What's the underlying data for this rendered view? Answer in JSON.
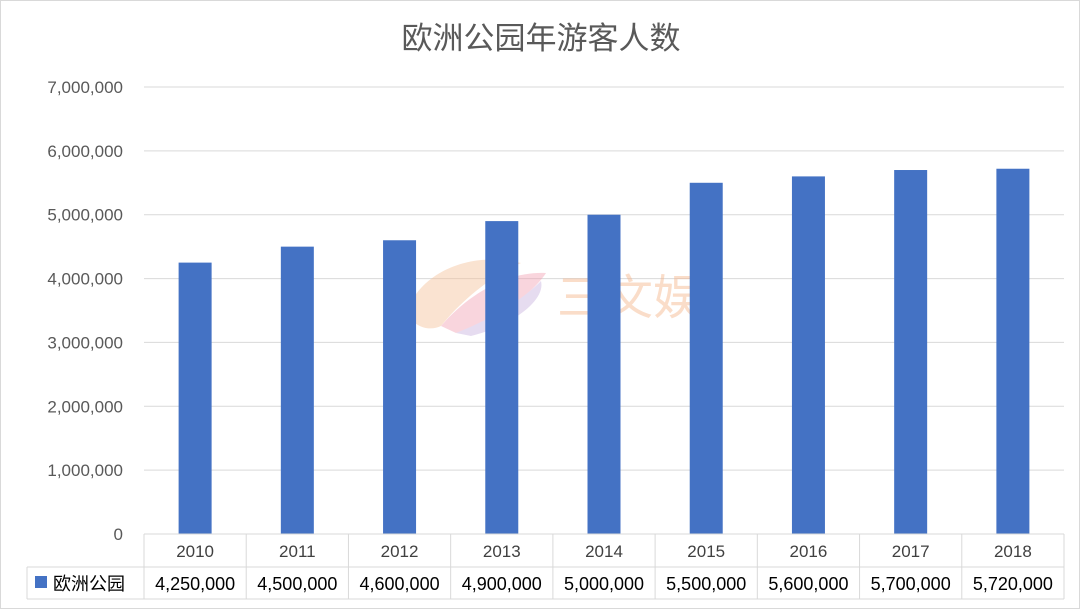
{
  "chart_data": {
    "type": "bar",
    "title": "欧洲公园年游客人数",
    "categories": [
      "2010",
      "2011",
      "2012",
      "2013",
      "2014",
      "2015",
      "2016",
      "2017",
      "2018"
    ],
    "series": [
      {
        "name": "欧洲公园",
        "values": [
          4250000,
          4500000,
          4600000,
          4900000,
          5000000,
          5500000,
          5600000,
          5700000,
          5720000
        ],
        "value_labels": [
          "4,250,000",
          "4,500,000",
          "4,600,000",
          "4,900,000",
          "5,000,000",
          "5,500,000",
          "5,600,000",
          "5,700,000",
          "5,720,000"
        ],
        "color": "#4472c4"
      }
    ],
    "ylim": [
      0,
      7000000
    ],
    "yticks": [
      0,
      1000000,
      2000000,
      3000000,
      4000000,
      5000000,
      6000000,
      7000000
    ],
    "ytick_labels": [
      "0",
      "1,000,000",
      "2,000,000",
      "3,000,000",
      "4,000,000",
      "5,000,000",
      "6,000,000",
      "7,000,000"
    ],
    "grid": true,
    "data_table": true
  },
  "watermark": {
    "text": "三文娱"
  }
}
